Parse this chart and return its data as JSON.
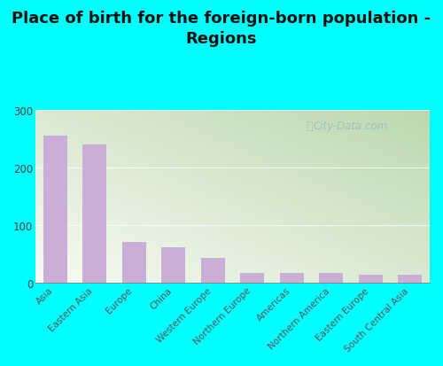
{
  "title": "Place of birth for the foreign-born population -\nRegions",
  "categories": [
    "Asia",
    "Eastern Asia",
    "Europe",
    "China",
    "Western Europe",
    "Northern Europe",
    "Americas",
    "Northern America",
    "Eastern Europe",
    "South Central Asia"
  ],
  "values": [
    255,
    240,
    72,
    62,
    43,
    18,
    18,
    17,
    15,
    14
  ],
  "bar_color": "#c9aed5",
  "bg_color": "#00ffff",
  "grad_top_left": "#f5f8f0",
  "grad_bottom_right": "#c8e0c0",
  "ylim": [
    0,
    300
  ],
  "yticks": [
    0,
    100,
    200,
    300
  ],
  "title_fontsize": 13,
  "tick_label_fontsize": 7.5,
  "ytick_fontsize": 8.5,
  "watermark": "City-Data.com"
}
